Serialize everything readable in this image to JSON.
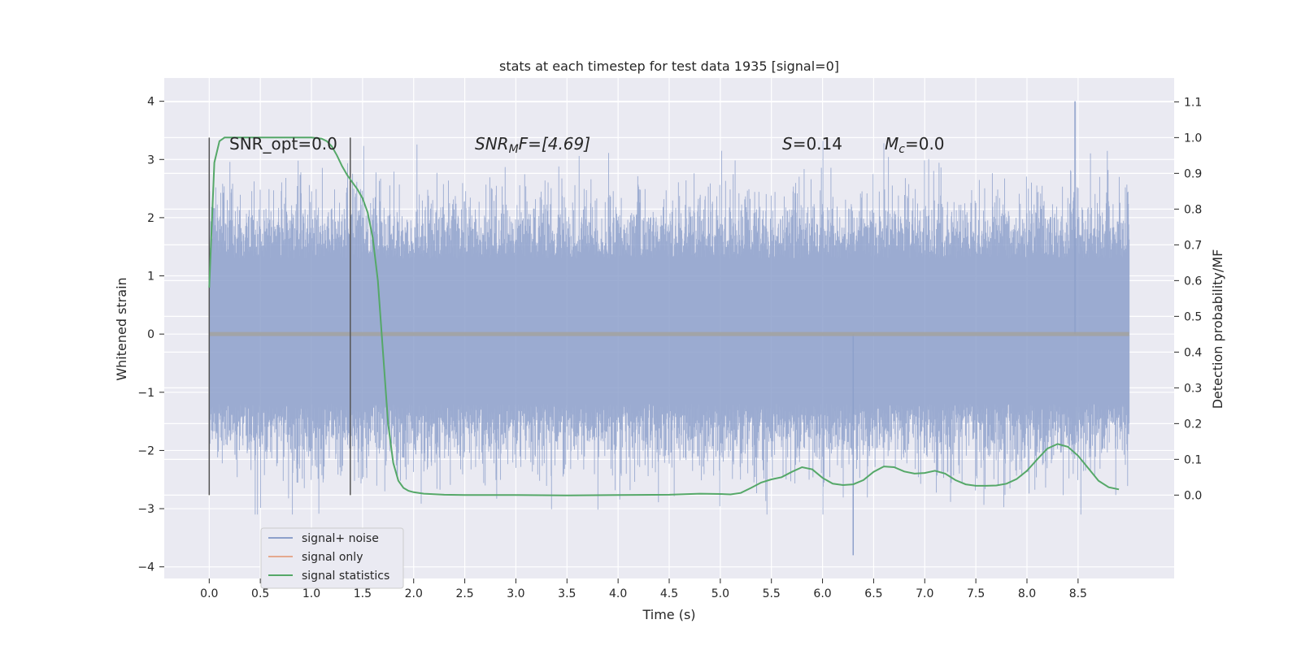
{
  "chart_data": {
    "type": "line",
    "title": "stats at each timestep for test data 1935 [signal=0]",
    "xlabel": "Time (s)",
    "ylabel": "Whitened strain",
    "y2label": "Detection probability/MF",
    "xlim": [
      -0.44,
      9.44
    ],
    "ylim": [
      -4.2,
      4.4
    ],
    "y2lim": [
      -0.2333,
      1.1667
    ],
    "x_ticks": [
      "0.0",
      "0.5",
      "1.0",
      "1.5",
      "2.0",
      "2.5",
      "3.0",
      "3.5",
      "4.0",
      "4.5",
      "5.0",
      "5.5",
      "6.0",
      "6.5",
      "7.0",
      "7.5",
      "8.0",
      "8.5"
    ],
    "y_ticks": [
      "4",
      "3",
      "2",
      "1",
      "0",
      "−1",
      "−2",
      "−3",
      "−4"
    ],
    "y2_ticks": [
      "1.1",
      "1.0",
      "0.9",
      "0.8",
      "0.7",
      "0.6",
      "0.5",
      "0.4",
      "0.3",
      "0.2",
      "0.1",
      "0.0"
    ],
    "annotations": {
      "snr_opt": "SNR_opt=0.0",
      "snr_mf_main": "SNR",
      "snr_mf_sub": "M",
      "snr_mf_rest": "F=[4.69]",
      "s_main": "S",
      "s_rest": "=0.14",
      "mc_main": "M",
      "mc_sub": "c",
      "mc_rest": "=0.0"
    },
    "vertical_lines": [
      0.0,
      1.38
    ],
    "series": [
      {
        "name": "signal+ noise",
        "color": "#8da0cb",
        "t_range": [
          0.0,
          9.0
        ],
        "envelope_typical": [
          -1.2,
          1.3
        ],
        "max": 4.0,
        "min": -3.8
      },
      {
        "name": "signal only",
        "color": "#e5a98f",
        "values_const": 0.0
      },
      {
        "name": "signal statistics",
        "color": "#55a868",
        "x": [
          0.0,
          0.05,
          0.1,
          0.15,
          0.2,
          0.3,
          0.5,
          0.7,
          0.9,
          1.0,
          1.1,
          1.15,
          1.2,
          1.25,
          1.3,
          1.35,
          1.4,
          1.45,
          1.5,
          1.55,
          1.6,
          1.65,
          1.7,
          1.75,
          1.8,
          1.85,
          1.9,
          1.95,
          2.0,
          2.1,
          2.3,
          2.5,
          3.0,
          3.5,
          4.0,
          4.5,
          4.8,
          5.0,
          5.1,
          5.2,
          5.3,
          5.4,
          5.5,
          5.6,
          5.7,
          5.8,
          5.9,
          6.0,
          6.1,
          6.2,
          6.3,
          6.4,
          6.5,
          6.6,
          6.7,
          6.8,
          6.9,
          7.0,
          7.1,
          7.2,
          7.3,
          7.4,
          7.5,
          7.6,
          7.7,
          7.8,
          7.9,
          8.0,
          8.1,
          8.2,
          8.3,
          8.4,
          8.5,
          8.6,
          8.7,
          8.8,
          8.9
        ],
        "values": [
          0.58,
          0.93,
          0.99,
          1.0,
          1.0,
          1.0,
          1.0,
          1.0,
          1.0,
          1.0,
          0.997,
          0.99,
          0.975,
          0.95,
          0.92,
          0.895,
          0.875,
          0.855,
          0.83,
          0.79,
          0.72,
          0.6,
          0.4,
          0.2,
          0.09,
          0.04,
          0.02,
          0.012,
          0.008,
          0.004,
          0.001,
          0.0,
          0.0,
          -0.001,
          0.0,
          0.001,
          0.004,
          0.003,
          0.002,
          0.006,
          0.02,
          0.035,
          0.044,
          0.05,
          0.065,
          0.078,
          0.072,
          0.048,
          0.032,
          0.028,
          0.03,
          0.042,
          0.065,
          0.08,
          0.078,
          0.066,
          0.06,
          0.062,
          0.068,
          0.06,
          0.042,
          0.03,
          0.026,
          0.026,
          0.027,
          0.032,
          0.045,
          0.068,
          0.1,
          0.13,
          0.143,
          0.135,
          0.11,
          0.075,
          0.04,
          0.022,
          0.016
        ]
      }
    ],
    "legend_position": "lower-left",
    "grid": true
  }
}
